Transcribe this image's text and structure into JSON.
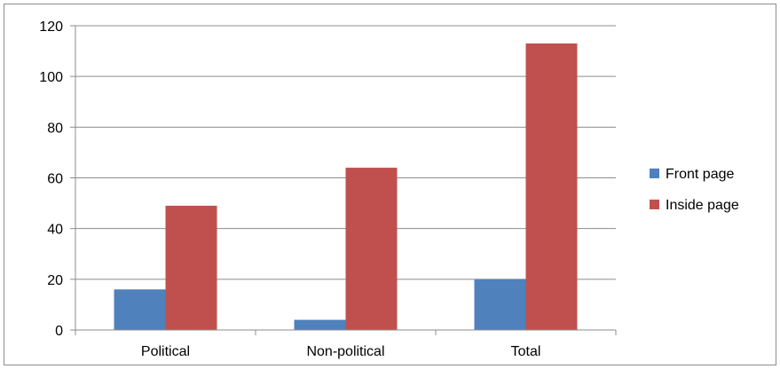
{
  "chart_data": {
    "type": "bar",
    "categories": [
      "Political",
      "Non-political",
      "Total"
    ],
    "series": [
      {
        "name": "Front page",
        "values": [
          16,
          4,
          20
        ],
        "color": "#4f81bd"
      },
      {
        "name": "Inside page",
        "values": [
          49,
          64,
          113
        ],
        "color": "#c0504d"
      }
    ],
    "ylim": [
      0,
      120
    ],
    "yticks": [
      0,
      20,
      40,
      60,
      80,
      100,
      120
    ],
    "grid": true,
    "legend_position": "right"
  }
}
